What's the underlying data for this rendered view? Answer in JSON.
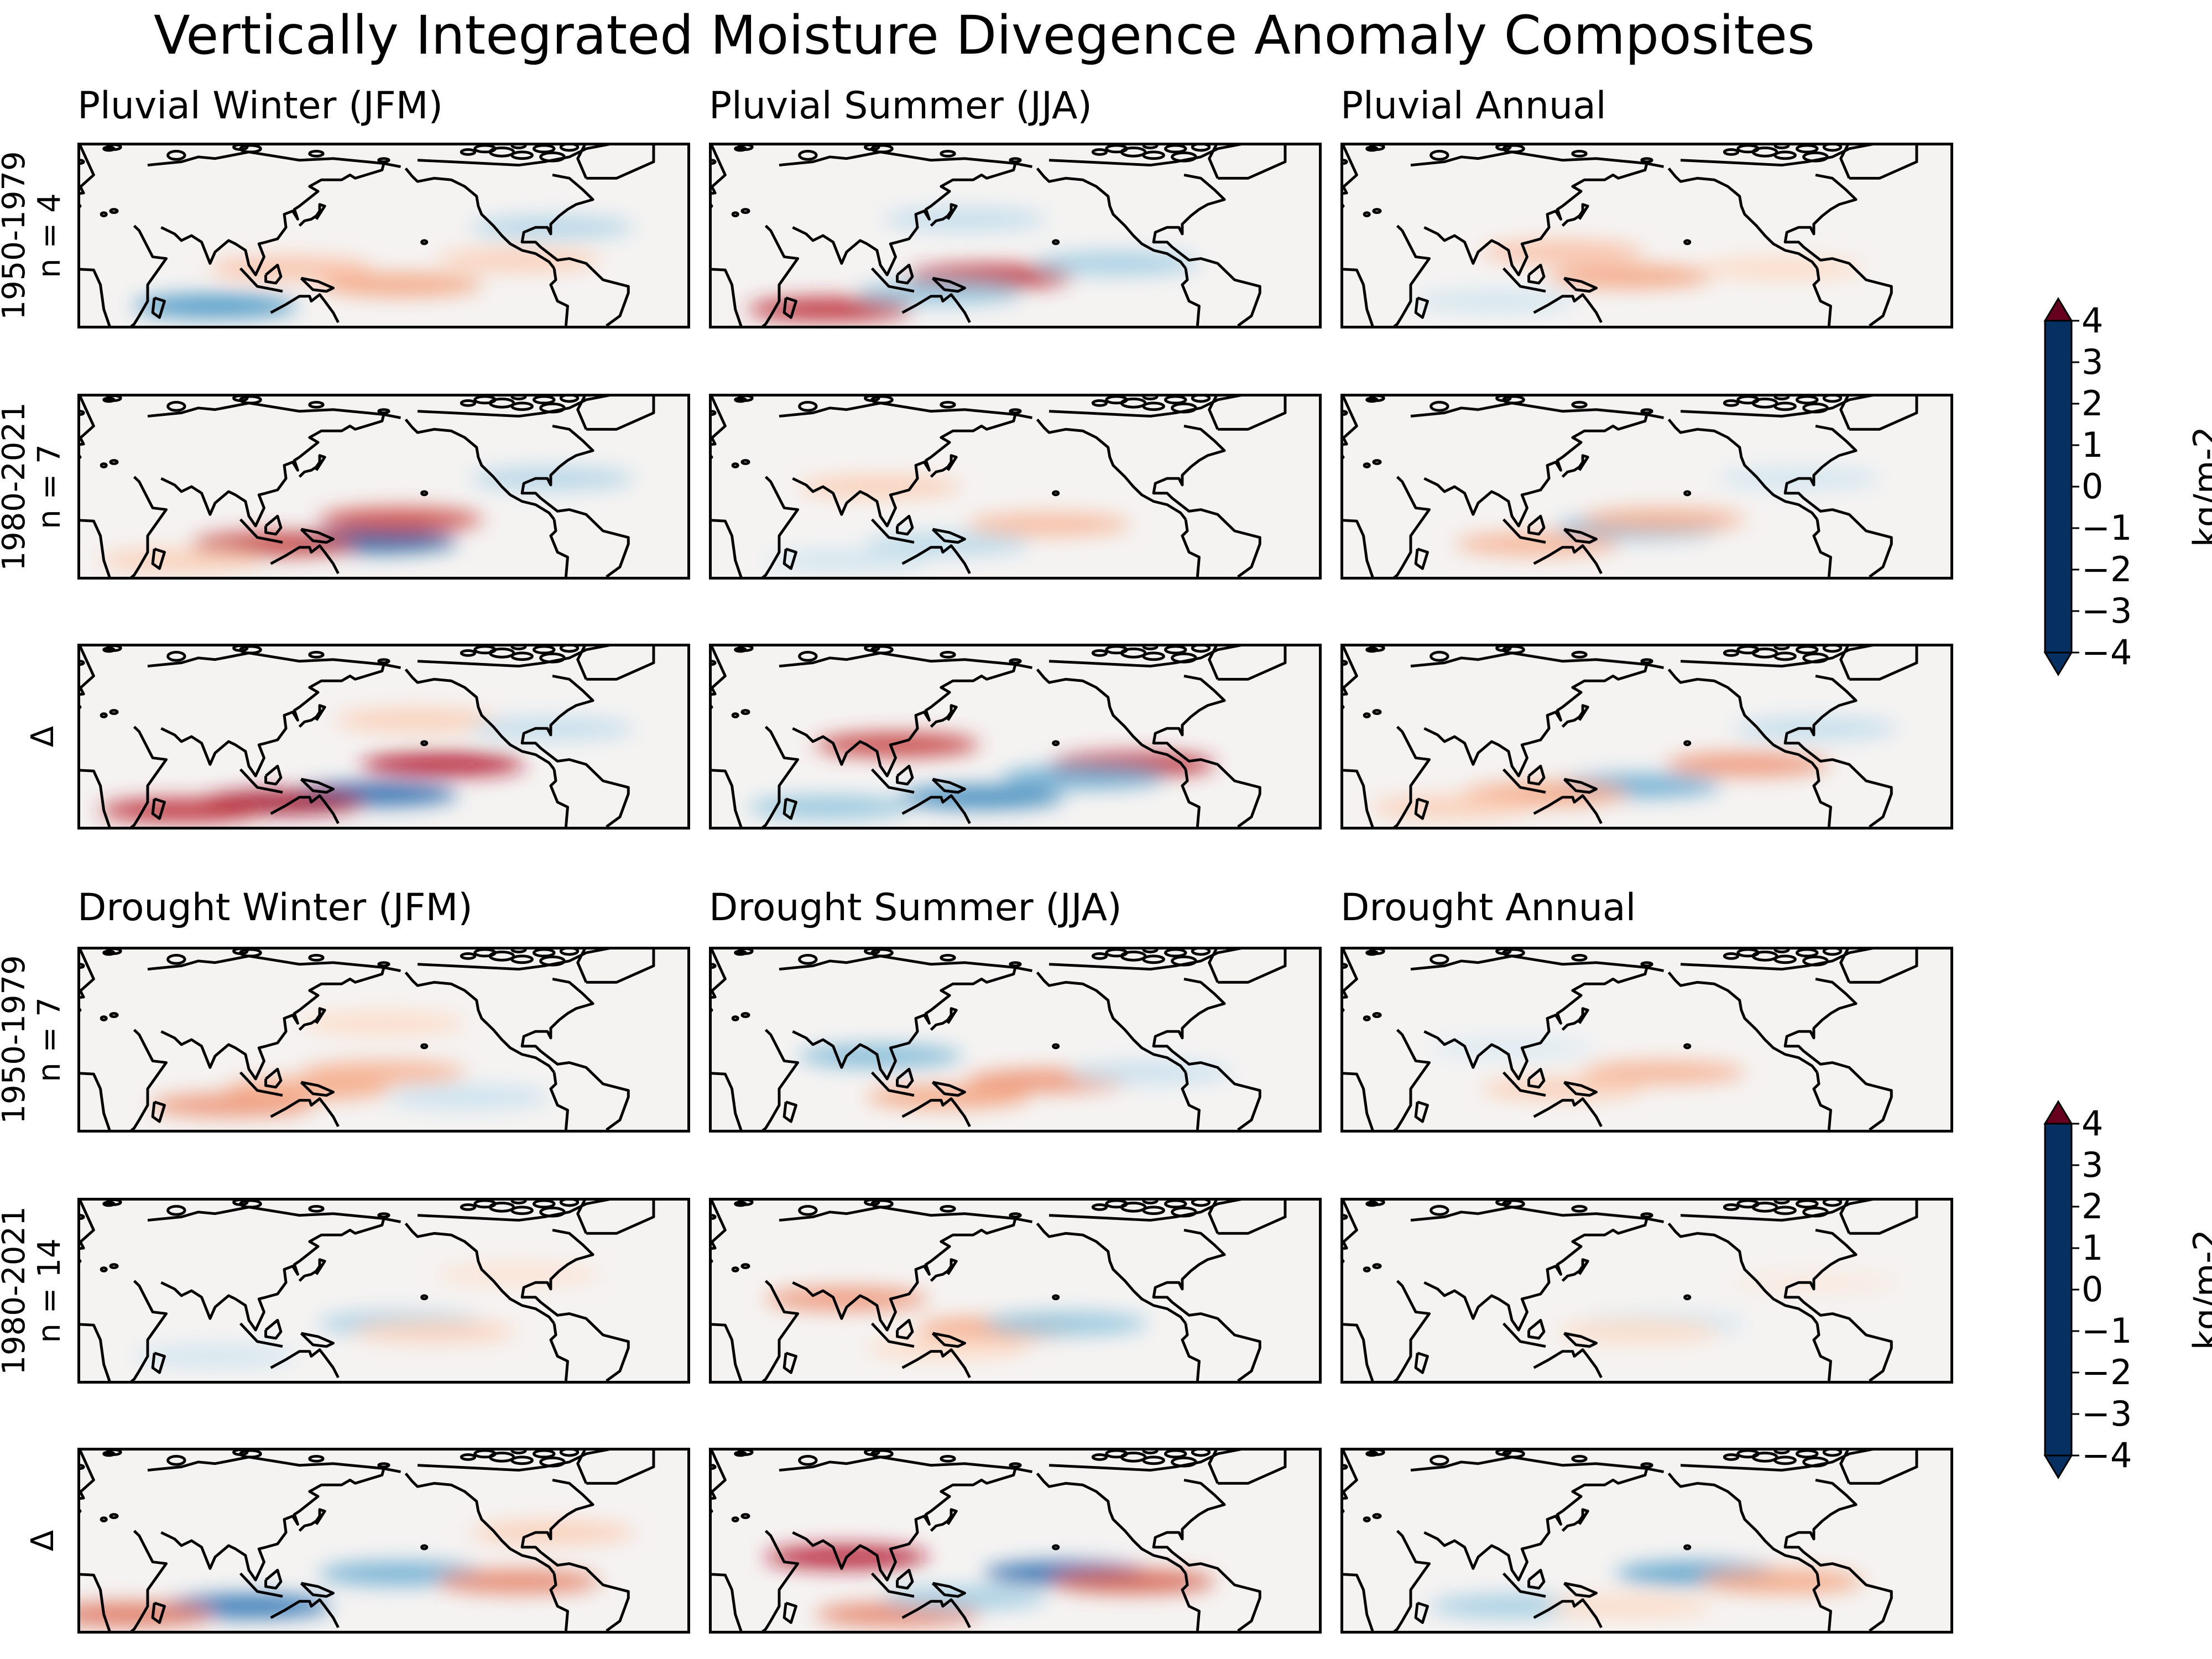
{
  "title": "Vertically Integrated Moisture Divegence Anomaly Composites",
  "blocks": [
    {
      "id": "pluvial",
      "column_titles": [
        "Pluvial Winter (JFM)",
        "Pluvial Summer (JJA)",
        "Pluvial Annual"
      ],
      "rows": [
        {
          "label_lines": [
            "1950-1979",
            "n = 4"
          ]
        },
        {
          "label_lines": [
            "1980-2021",
            "n = 7"
          ]
        },
        {
          "label_lines": [
            "Δ"
          ]
        }
      ]
    },
    {
      "id": "drought",
      "column_titles": [
        "Drought Winter (JFM)",
        "Drought Summer (JJA)",
        "Drought Annual"
      ],
      "rows": [
        {
          "label_lines": [
            "1950-1979",
            "n = 7"
          ]
        },
        {
          "label_lines": [
            "1980-2021",
            "n = 14"
          ]
        },
        {
          "label_lines": [
            "Δ"
          ]
        }
      ]
    }
  ],
  "colorbars": [
    {
      "unit": "kg/m-2",
      "ticks": [
        "4",
        "3",
        "2",
        "1",
        "0",
        "−1",
        "−2",
        "−3",
        "−4"
      ],
      "range": [
        -4,
        4
      ],
      "extend": "both"
    },
    {
      "unit": "kg/m-2",
      "ticks": [
        "4",
        "3",
        "2",
        "1",
        "0",
        "−1",
        "−2",
        "−3",
        "−4"
      ],
      "range": [
        -4,
        4
      ],
      "extend": "both"
    }
  ],
  "colormap": {
    "name": "RdBu_r",
    "stops": [
      "#053061",
      "#2166ac",
      "#4393c3",
      "#92c5de",
      "#d1e5f0",
      "#f7f7f7",
      "#fddbc7",
      "#f4a582",
      "#d6604d",
      "#b2182b",
      "#67001f"
    ]
  },
  "map_projection": "Pacific-centered, longitude 0°E to 360°, latitude 30°S to 80°N",
  "coastline_color": "#000000",
  "anomaly_bands": [
    [
      [
        {
          "lat": -5,
          "lon": 190,
          "val": 1.6
        },
        {
          "lat": -18,
          "lon": 80,
          "val": -2.4
        },
        {
          "lat": 5,
          "lon": 125,
          "val": 1.2
        },
        {
          "lat": 30,
          "lon": 280,
          "val": -1.2
        },
        {
          "lat": 10,
          "lon": 260,
          "val": 1.0
        }
      ],
      [
        {
          "lat": 0,
          "lon": 165,
          "val": 3.0
        },
        {
          "lat": -20,
          "lon": 70,
          "val": 3.0
        },
        {
          "lat": -10,
          "lon": 135,
          "val": -1.6
        },
        {
          "lat": 8,
          "lon": 240,
          "val": -1.4
        },
        {
          "lat": 35,
          "lon": 150,
          "val": -1.0
        }
      ],
      [
        {
          "lat": 0,
          "lon": 170,
          "val": 1.6
        },
        {
          "lat": 15,
          "lon": 130,
          "val": 1.2
        },
        {
          "lat": -15,
          "lon": 90,
          "val": -0.8
        },
        {
          "lat": 5,
          "lon": 260,
          "val": 0.8
        }
      ]
    ],
    [
      [
        {
          "lat": -8,
          "lon": 175,
          "val": -3.4
        },
        {
          "lat": 5,
          "lon": 190,
          "val": 2.6
        },
        {
          "lat": -10,
          "lon": 115,
          "val": 2.8
        },
        {
          "lat": 30,
          "lon": 280,
          "val": -1.2
        },
        {
          "lat": -20,
          "lon": 60,
          "val": 1.0
        }
      ],
      [
        {
          "lat": 2,
          "lon": 200,
          "val": 1.3
        },
        {
          "lat": -10,
          "lon": 140,
          "val": -1.1
        },
        {
          "lat": 25,
          "lon": 100,
          "val": 1.0
        },
        {
          "lat": -20,
          "lon": 80,
          "val": -0.8
        }
      ],
      [
        {
          "lat": 0,
          "lon": 175,
          "val": -1.8
        },
        {
          "lat": 5,
          "lon": 190,
          "val": 1.4
        },
        {
          "lat": -10,
          "lon": 115,
          "val": 1.4
        },
        {
          "lat": 30,
          "lon": 270,
          "val": -0.8
        }
      ]
    ],
    [
      [
        {
          "lat": -10,
          "lon": 175,
          "val": -3.2
        },
        {
          "lat": 8,
          "lon": 215,
          "val": 3.2
        },
        {
          "lat": -15,
          "lon": 120,
          "val": 3.4
        },
        {
          "lat": -20,
          "lon": 60,
          "val": 3.0
        },
        {
          "lat": 35,
          "lon": 200,
          "val": 1.0
        },
        {
          "lat": 30,
          "lon": 280,
          "val": -1.0
        }
      ],
      [
        {
          "lat": -12,
          "lon": 160,
          "val": -2.6
        },
        {
          "lat": 8,
          "lon": 250,
          "val": 3.0
        },
        {
          "lat": 20,
          "lon": 110,
          "val": 2.8
        },
        {
          "lat": -18,
          "lon": 70,
          "val": -1.6
        },
        {
          "lat": 0,
          "lon": 220,
          "val": -2.0
        }
      ],
      [
        {
          "lat": -5,
          "lon": 175,
          "val": -2.0
        },
        {
          "lat": 8,
          "lon": 240,
          "val": 1.8
        },
        {
          "lat": -10,
          "lon": 120,
          "val": 1.6
        },
        {
          "lat": 30,
          "lon": 280,
          "val": -1.0
        },
        {
          "lat": -18,
          "lon": 65,
          "val": 1.0
        }
      ]
    ],
    [
      [
        {
          "lat": -15,
          "lon": 90,
          "val": 1.8
        },
        {
          "lat": 5,
          "lon": 180,
          "val": 1.4
        },
        {
          "lat": -5,
          "lon": 135,
          "val": 1.5
        },
        {
          "lat": -10,
          "lon": 230,
          "val": -0.9
        },
        {
          "lat": 35,
          "lon": 180,
          "val": 0.8
        }
      ],
      [
        {
          "lat": 0,
          "lon": 200,
          "val": 1.8
        },
        {
          "lat": 15,
          "lon": 100,
          "val": -1.8
        },
        {
          "lat": -10,
          "lon": 140,
          "val": 1.6
        },
        {
          "lat": 5,
          "lon": 260,
          "val": -0.9
        }
      ],
      [
        {
          "lat": 5,
          "lon": 190,
          "val": 1.4
        },
        {
          "lat": -5,
          "lon": 130,
          "val": 1.0
        },
        {
          "lat": 20,
          "lon": 100,
          "val": -0.6
        }
      ]
    ],
    [
      [
        {
          "lat": 5,
          "lon": 190,
          "val": -1.4
        },
        {
          "lat": 0,
          "lon": 210,
          "val": 0.9
        },
        {
          "lat": -15,
          "lon": 80,
          "val": -0.8
        },
        {
          "lat": 35,
          "lon": 260,
          "val": 0.6
        }
      ],
      [
        {
          "lat": 2,
          "lon": 170,
          "val": 1.6
        },
        {
          "lat": 5,
          "lon": 210,
          "val": -1.6
        },
        {
          "lat": 20,
          "lon": 80,
          "val": 1.8
        },
        {
          "lat": -10,
          "lon": 140,
          "val": 0.8
        }
      ],
      [
        {
          "lat": 5,
          "lon": 190,
          "val": -0.8
        },
        {
          "lat": 0,
          "lon": 175,
          "val": 0.8
        },
        {
          "lat": 30,
          "lon": 280,
          "val": 0.4
        }
      ]
    ],
    [
      [
        {
          "lat": -15,
          "lon": 100,
          "val": -3.0
        },
        {
          "lat": 5,
          "lon": 190,
          "val": -2.0
        },
        {
          "lat": 0,
          "lon": 260,
          "val": 2.0
        },
        {
          "lat": -20,
          "lon": 30,
          "val": 2.2
        },
        {
          "lat": 30,
          "lon": 280,
          "val": 1.0
        }
      ],
      [
        {
          "lat": 5,
          "lon": 210,
          "val": -3.2
        },
        {
          "lat": 0,
          "lon": 250,
          "val": 2.4
        },
        {
          "lat": 15,
          "lon": 80,
          "val": 3.2
        },
        {
          "lat": -20,
          "lon": 110,
          "val": 2.0
        },
        {
          "lat": -10,
          "lon": 150,
          "val": -1.4
        }
      ],
      [
        {
          "lat": 5,
          "lon": 210,
          "val": -2.2
        },
        {
          "lat": 0,
          "lon": 260,
          "val": 1.6
        },
        {
          "lat": -15,
          "lon": 100,
          "val": -1.4
        },
        {
          "lat": -15,
          "lon": 170,
          "val": 0.8
        }
      ]
    ]
  ]
}
